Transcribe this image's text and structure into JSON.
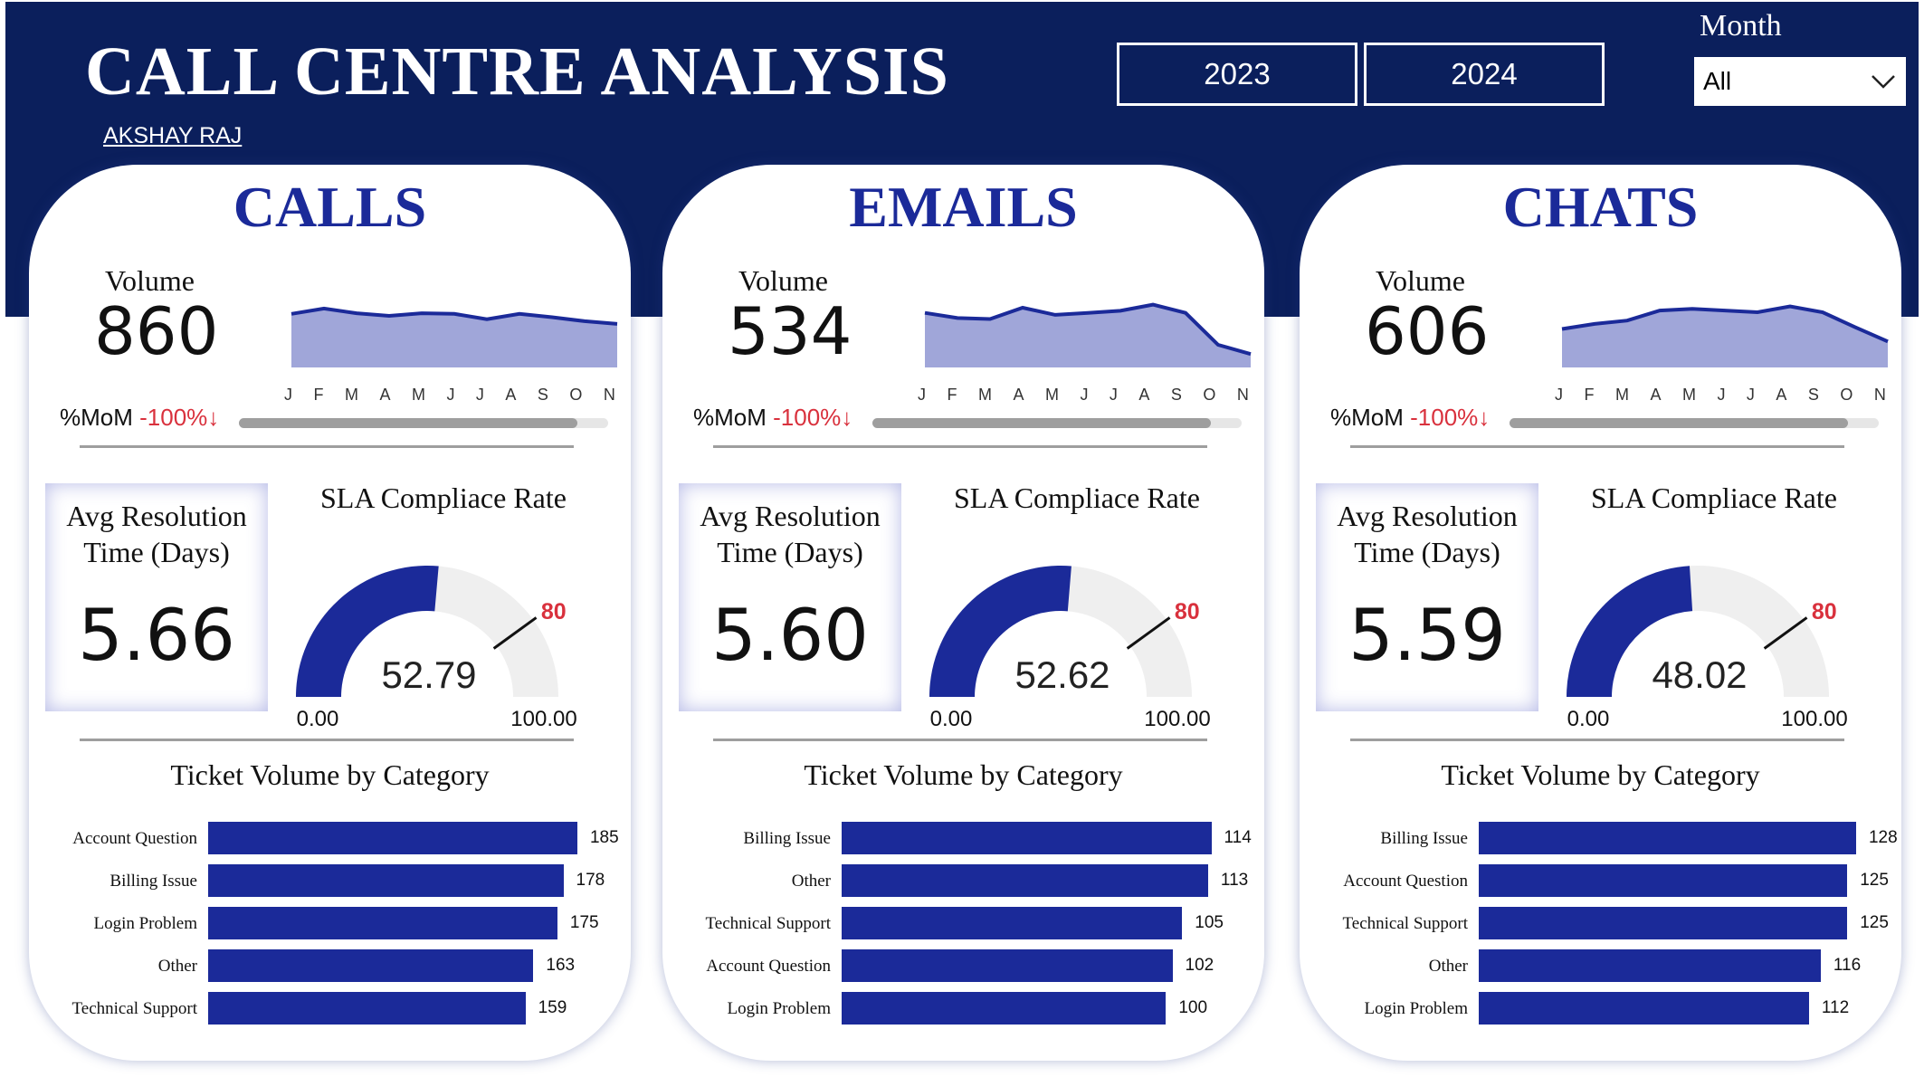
{
  "header": {
    "title": "CALL CENTRE ANALYSIS",
    "author": "AKSHAY RAJ",
    "years": [
      "2023",
      "2024"
    ],
    "month_filter": {
      "label": "Month",
      "selected": "All"
    }
  },
  "colors": {
    "header_bg": "#0b1f5c",
    "accent": "#1b2a99",
    "area_fill": "#a0a6d9",
    "negative": "#d9313d",
    "gauge_bg": "#efefef"
  },
  "months": [
    "J",
    "F",
    "M",
    "A",
    "M",
    "J",
    "J",
    "A",
    "S",
    "O",
    "N"
  ],
  "cards": [
    {
      "title": "CALLS",
      "volume_label": "Volume",
      "volume": "860",
      "mom_label": "%MoM",
      "mom_value": "-100%↓",
      "resolution_label_1": "Avg Resolution",
      "resolution_label_2": "Time (Days)",
      "resolution_value": "5.66",
      "sla_title": "SLA Compliace Rate",
      "sla_value": "52.79",
      "sla_min": "0.00",
      "sla_max": "100.00",
      "sla_target": "80",
      "category_title": "Ticket Volume by Category"
    },
    {
      "title": "EMAILS",
      "volume_label": "Volume",
      "volume": "534",
      "mom_label": "%MoM",
      "mom_value": "-100%↓",
      "resolution_label_1": "Avg Resolution",
      "resolution_label_2": "Time (Days)",
      "resolution_value": "5.60",
      "sla_title": "SLA Compliace Rate",
      "sla_value": "52.62",
      "sla_min": "0.00",
      "sla_max": "100.00",
      "sla_target": "80",
      "category_title": "Ticket Volume by Category"
    },
    {
      "title": "CHATS",
      "volume_label": "Volume",
      "volume": "606",
      "mom_label": "%MoM",
      "mom_value": "-100%↓",
      "resolution_label_1": "Avg Resolution",
      "resolution_label_2": "Time (Days)",
      "resolution_value": "5.59",
      "sla_title": "SLA Compliace Rate",
      "sla_value": "48.02",
      "sla_min": "0.00",
      "sla_max": "100.00",
      "sla_target": "80",
      "category_title": "Ticket Volume by Category"
    }
  ],
  "chart_data": [
    {
      "type": "area",
      "x": [
        "J",
        "F",
        "M",
        "A",
        "M",
        "J",
        "J",
        "A",
        "S",
        "O",
        "N"
      ],
      "series": [
        {
          "values": [
            80,
            88,
            81,
            77,
            81,
            80,
            72,
            80,
            75,
            69,
            65
          ]
        }
      ],
      "ylim": [
        0,
        100
      ]
    },
    {
      "type": "area",
      "x": [
        "J",
        "F",
        "M",
        "A",
        "M",
        "J",
        "J",
        "A",
        "S",
        "O",
        "N"
      ],
      "series": [
        {
          "values": [
            53,
            48,
            47,
            58,
            51,
            53,
            55,
            61,
            53,
            22,
            13
          ]
        }
      ],
      "ylim": [
        0,
        65
      ]
    },
    {
      "type": "area",
      "x": [
        "J",
        "F",
        "M",
        "A",
        "M",
        "J",
        "J",
        "A",
        "S",
        "O",
        "N"
      ],
      "series": [
        {
          "values": [
            46,
            52,
            56,
            68,
            70,
            68,
            66,
            73,
            66,
            48,
            31
          ]
        }
      ],
      "ylim": [
        0,
        80
      ]
    },
    {
      "type": "bar",
      "orientation": "horizontal",
      "categories": [
        "Account Question",
        "Billing Issue",
        "Login Problem",
        "Other",
        "Technical Support"
      ],
      "values": [
        185,
        178,
        175,
        163,
        159
      ],
      "xlim": [
        0,
        195
      ]
    },
    {
      "type": "bar",
      "orientation": "horizontal",
      "categories": [
        "Billing Issue",
        "Other",
        "Technical Support",
        "Account Question",
        "Login Problem"
      ],
      "values": [
        114,
        113,
        105,
        102,
        100
      ],
      "xlim": [
        0,
        120
      ]
    },
    {
      "type": "bar",
      "orientation": "horizontal",
      "categories": [
        "Billing Issue",
        "Account Question",
        "Technical Support",
        "Other",
        "Login Problem"
      ],
      "values": [
        128,
        125,
        125,
        116,
        112
      ],
      "xlim": [
        0,
        132
      ]
    }
  ]
}
